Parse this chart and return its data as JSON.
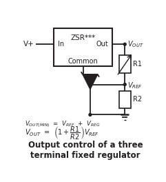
{
  "title": "Output control of a three\nterminal fixed regulator",
  "bg_color": "#ffffff",
  "line_color": "#231f20",
  "box_label": "ZSR***",
  "in_label": "In",
  "out_label": "Out",
  "common_label": "Common",
  "vplus_label": "V+",
  "r1_label": "R1",
  "r2_label": "R2",
  "fig_width": 2.41,
  "fig_height": 2.64,
  "dpi": 100
}
